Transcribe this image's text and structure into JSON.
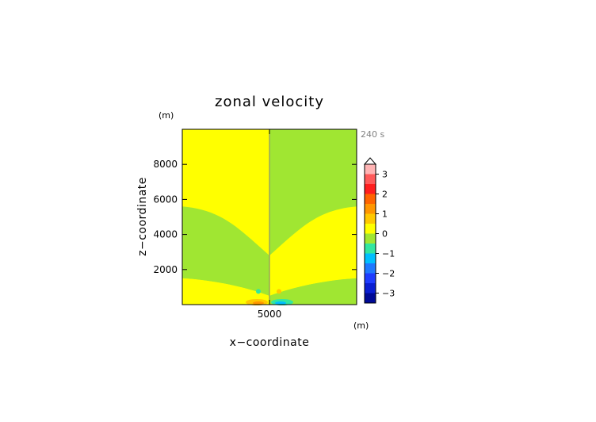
{
  "chart_data": {
    "type": "heatmap",
    "title": "zonal velocity",
    "xlabel": "x−coordinate",
    "ylabel": "z−coordinate",
    "x_unit": "(m)",
    "y_unit": "(m)",
    "time_label": "240 s",
    "xlim": [
      0,
      10000
    ],
    "ylim": [
      0,
      10000
    ],
    "x_ticks": [
      {
        "value": 5000,
        "label": "5000"
      }
    ],
    "y_ticks": [
      {
        "value": 2000,
        "label": "2000"
      },
      {
        "value": 4000,
        "label": "4000"
      },
      {
        "value": 6000,
        "label": "6000"
      },
      {
        "value": 8000,
        "label": "8000"
      }
    ],
    "field": {
      "background_color": "#ffff00",
      "mountain_center_x": 5000,
      "regions": [
        {
          "value_range": [
            -0.5,
            0
          ],
          "color": "#a0e632",
          "side": "right",
          "description_note": "upper-right quadrant band"
        },
        {
          "value_range": [
            0,
            0.5
          ],
          "color": "#ffff00",
          "side": "left"
        }
      ]
    },
    "colorbar": {
      "levels": [
        {
          "low": 3.0,
          "high": 3.5,
          "color": "#ffb4b4"
        },
        {
          "low": 2.5,
          "high": 3.0,
          "color": "#ff5a5a"
        },
        {
          "low": 2.0,
          "high": 2.5,
          "color": "#ff1e1e"
        },
        {
          "low": 1.5,
          "high": 2.0,
          "color": "#ff6400"
        },
        {
          "low": 1.0,
          "high": 1.5,
          "color": "#ff9600"
        },
        {
          "low": 0.5,
          "high": 1.0,
          "color": "#ffc800"
        },
        {
          "low": 0.0,
          "high": 0.5,
          "color": "#ffff00"
        },
        {
          "low": -0.5,
          "high": 0.0,
          "color": "#a0e632"
        },
        {
          "low": -1.0,
          "high": -0.5,
          "color": "#32e6a0"
        },
        {
          "low": -1.5,
          "high": -1.0,
          "color": "#00bfff"
        },
        {
          "low": -2.0,
          "high": -1.5,
          "color": "#1e78ff"
        },
        {
          "low": -2.5,
          "high": -2.0,
          "color": "#1e3cff"
        },
        {
          "low": -3.0,
          "high": -2.5,
          "color": "#0a1ed2"
        },
        {
          "low": -3.5,
          "high": -3.0,
          "color": "#000a96"
        }
      ],
      "tick_labels": [
        {
          "value": 3,
          "label": "3"
        },
        {
          "value": 2,
          "label": "2"
        },
        {
          "value": 1,
          "label": "1"
        },
        {
          "value": 0,
          "label": "0"
        },
        {
          "value": -1,
          "label": "−1"
        },
        {
          "value": -2,
          "label": "−2"
        },
        {
          "value": -3,
          "label": "−3"
        }
      ],
      "extend": "max"
    }
  }
}
